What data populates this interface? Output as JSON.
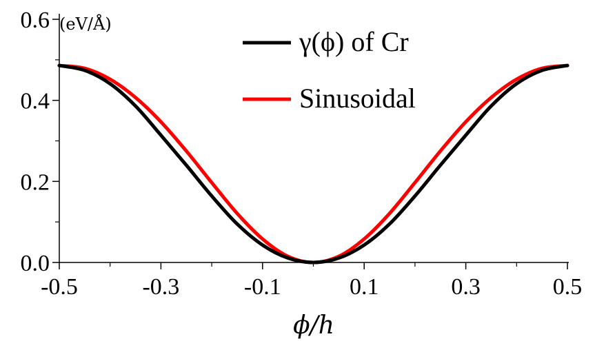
{
  "chart_data": {
    "type": "line",
    "title": "",
    "xlabel": "ϕ/h",
    "ylabel": "(eV/Å)",
    "xlim": [
      -0.5,
      0.5
    ],
    "ylim": [
      0.0,
      0.6
    ],
    "x_ticks": [
      -0.5,
      -0.3,
      -0.1,
      0.1,
      0.3,
      0.5
    ],
    "x_tick_labels": [
      "-0.5",
      "-0.3",
      "-0.1",
      "0.1",
      "0.3",
      "0.5"
    ],
    "y_ticks": [
      0.0,
      0.2,
      0.4,
      0.6
    ],
    "y_tick_labels": [
      "0.0",
      "0.2",
      "0.4",
      "0.6"
    ],
    "grid": false,
    "legend_position": "top-right",
    "series": [
      {
        "name": "γ(ϕ) of Cr",
        "color": "#000000",
        "x": [
          -0.5,
          -0.45,
          -0.4,
          -0.35,
          -0.3,
          -0.25,
          -0.2,
          -0.15,
          -0.1,
          -0.05,
          0.0,
          0.05,
          0.1,
          0.15,
          0.2,
          0.25,
          0.3,
          0.35,
          0.4,
          0.45,
          0.5
        ],
        "y": [
          0.486,
          0.474,
          0.441,
          0.386,
          0.314,
          0.24,
          0.164,
          0.095,
          0.043,
          0.011,
          0.0,
          0.011,
          0.043,
          0.095,
          0.164,
          0.24,
          0.314,
          0.386,
          0.441,
          0.474,
          0.486
        ]
      },
      {
        "name": "Sinusoidal",
        "color": "#ff0000",
        "x": [
          -0.5,
          -0.45,
          -0.4,
          -0.35,
          -0.3,
          -0.25,
          -0.2,
          -0.15,
          -0.1,
          -0.05,
          0.0,
          0.05,
          0.1,
          0.15,
          0.2,
          0.25,
          0.3,
          0.35,
          0.4,
          0.45,
          0.5
        ],
        "y": [
          0.486,
          0.479,
          0.452,
          0.407,
          0.347,
          0.275,
          0.197,
          0.121,
          0.058,
          0.015,
          0.0,
          0.015,
          0.058,
          0.121,
          0.197,
          0.275,
          0.347,
          0.407,
          0.452,
          0.479,
          0.486
        ]
      }
    ]
  }
}
